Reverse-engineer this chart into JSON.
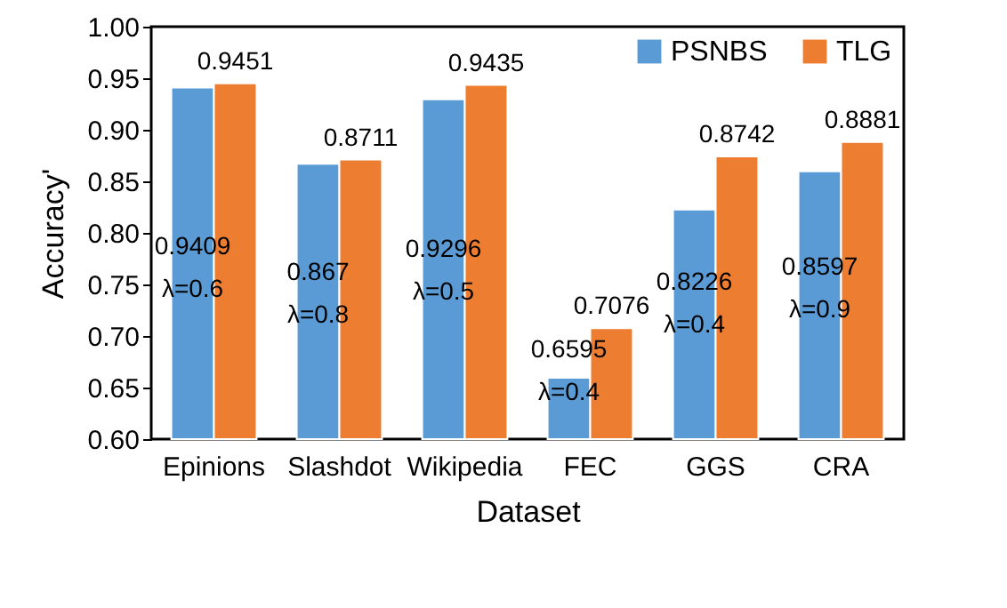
{
  "chart_data": {
    "type": "bar",
    "xlabel": "Dataset",
    "ylabel": "Accuracy'",
    "categories": [
      "Epinions",
      "Slashdot",
      "Wikipedia",
      "FEC",
      "GGS",
      "CRA"
    ],
    "series": [
      {
        "name": "PSNBS",
        "color": "#5b9bd5",
        "values": [
          0.9409,
          0.867,
          0.9296,
          0.6595,
          0.8226,
          0.8597
        ]
      },
      {
        "name": "TLG",
        "color": "#ed7d31",
        "values": [
          0.9451,
          0.8711,
          0.9435,
          0.7076,
          0.8742,
          0.8881
        ]
      }
    ],
    "data_labels": true,
    "annotations": [
      {
        "text": "λ=0.6",
        "x": "Epinions",
        "y": 0.745
      },
      {
        "text": "λ=0.8",
        "x": "Slashdot",
        "y": 0.72
      },
      {
        "text": "λ=0.5",
        "x": "Wikipedia",
        "y": 0.742
      },
      {
        "text": "λ=0.4",
        "x": "FEC",
        "y": 0.645
      },
      {
        "text": "λ=0.4",
        "x": "GGS",
        "y": 0.71
      },
      {
        "text": "λ=0.9",
        "x": "CRA",
        "y": 0.725
      }
    ],
    "ylim": [
      0.6,
      1.0
    ],
    "yticks": [
      {
        "value": 0.6,
        "label": "0.60"
      },
      {
        "value": 0.65,
        "label": "0.65"
      },
      {
        "value": 0.7,
        "label": "0.70"
      },
      {
        "value": 0.75,
        "label": "0.75"
      },
      {
        "value": 0.8,
        "label": "0.80"
      },
      {
        "value": 0.85,
        "label": "0.85"
      },
      {
        "value": 0.9,
        "label": "0.90"
      },
      {
        "value": 0.95,
        "label": "0.95"
      },
      {
        "value": 1.0,
        "label": "1.00"
      }
    ],
    "grid": false,
    "legend": "top right"
  }
}
